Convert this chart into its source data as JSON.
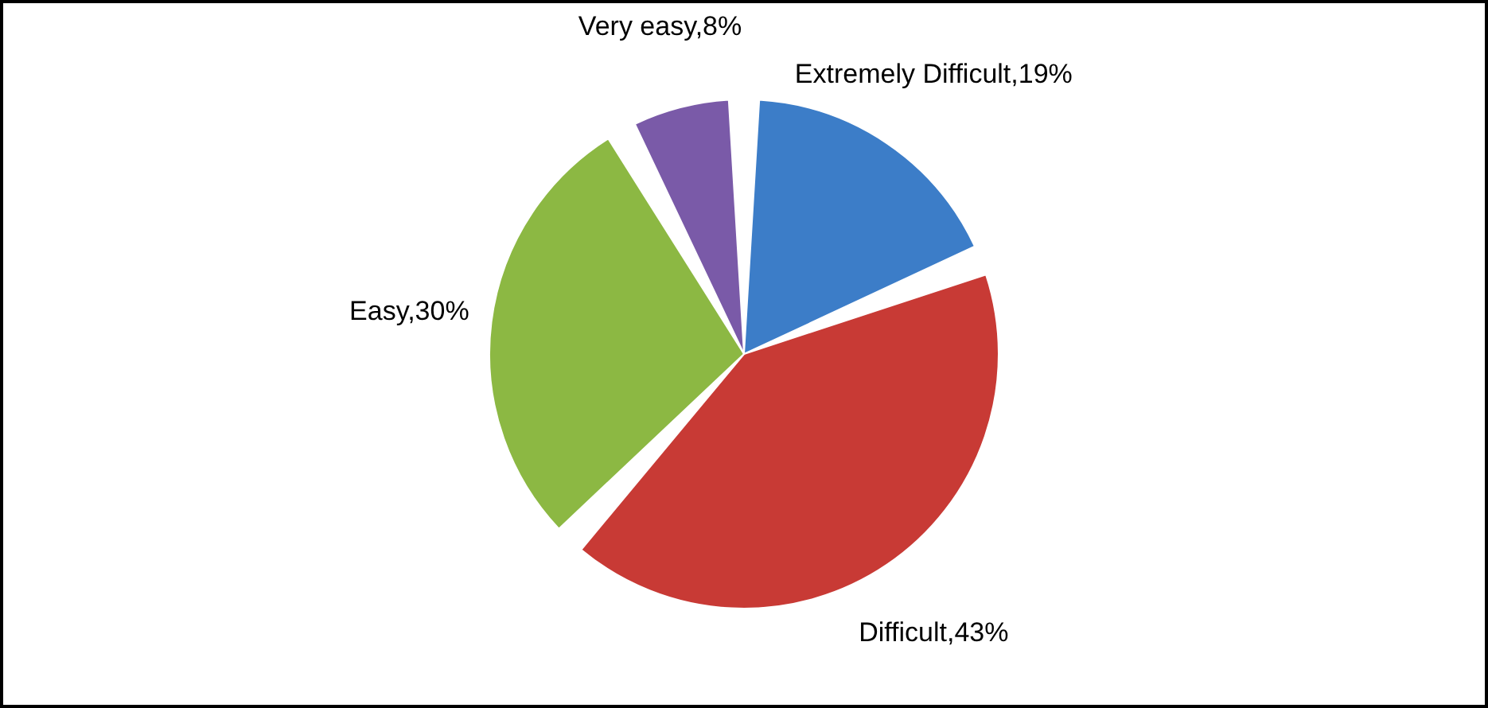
{
  "chart_data": {
    "type": "pie",
    "categories": [
      "Extremely Difficult",
      "Difficult",
      "Easy",
      "Very easy"
    ],
    "values": [
      19,
      43,
      30,
      8
    ],
    "colors": [
      "#3c7dc8",
      "#c83a35",
      "#8cb843",
      "#7a5aa8"
    ],
    "value_labels": [
      "19%",
      "43%",
      "30%",
      "8%"
    ],
    "legend": false
  }
}
